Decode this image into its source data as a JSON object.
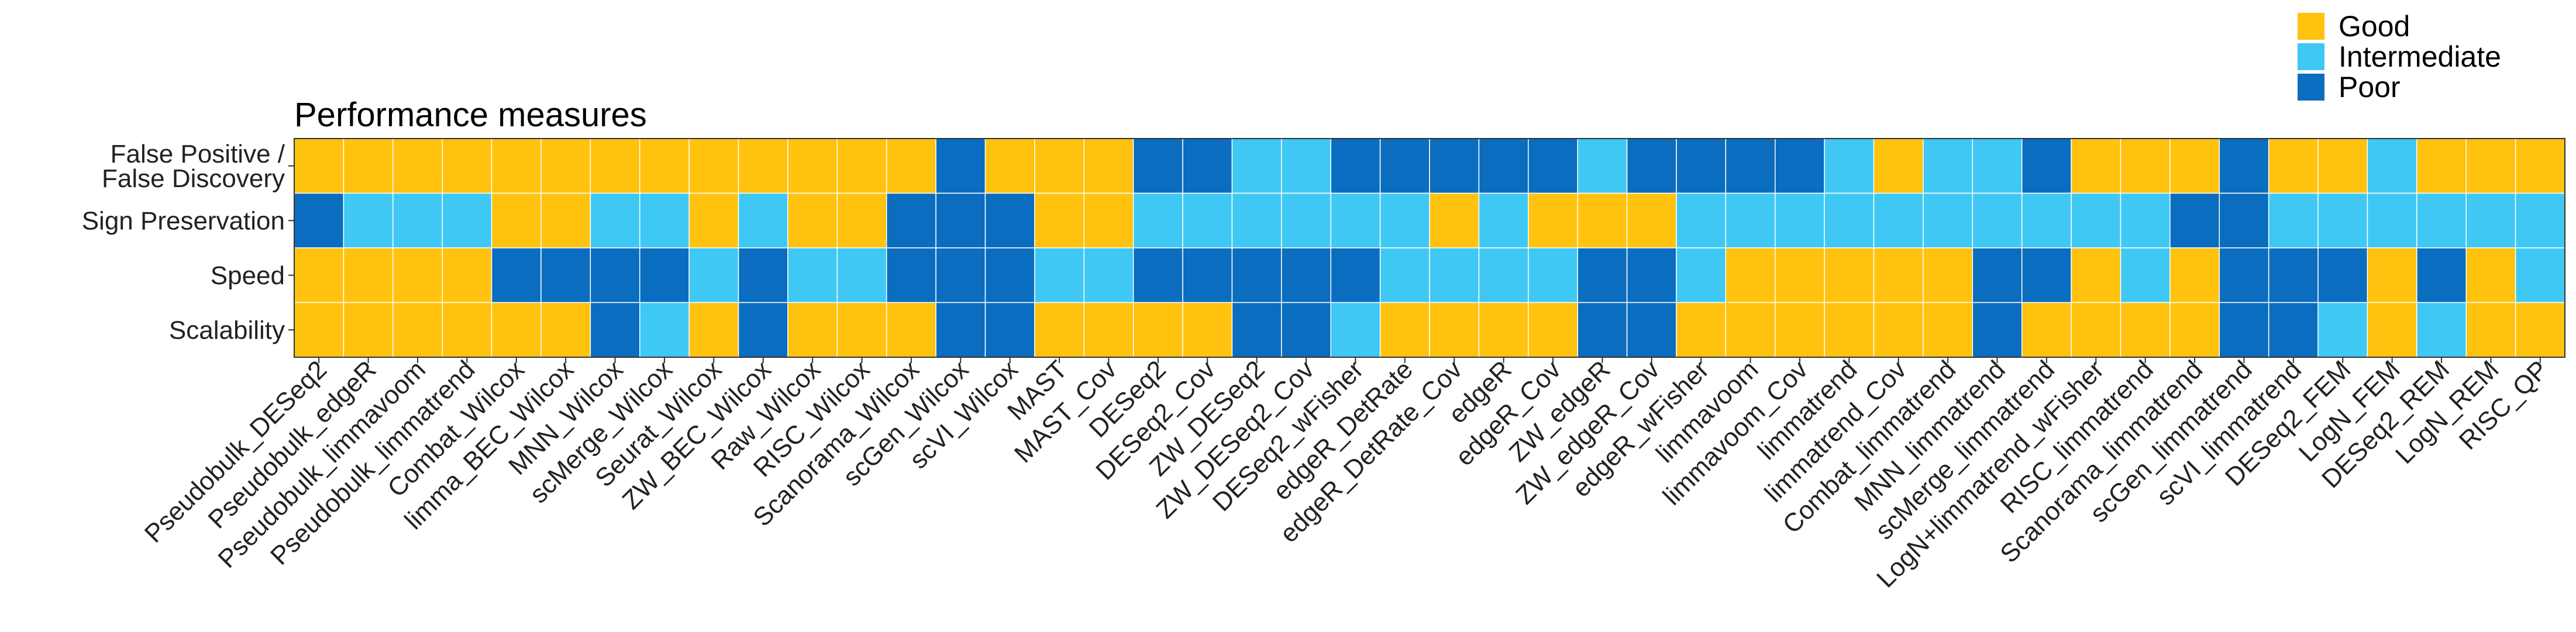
{
  "chart_data": {
    "type": "heatmap",
    "title": "Performance measures",
    "rows": [
      [
        "False Positive /",
        "False Discovery"
      ],
      [
        "Sign Preservation"
      ],
      [
        "Speed"
      ],
      [
        "Scalability"
      ]
    ],
    "columns": [
      "Pseudobulk_DESeq2",
      "Pseudobulk_edgeR",
      "Pseudobulk_limmavoom",
      "Pseudobulk_limmatrend",
      "Combat_Wilcox",
      "limma_BEC_Wilcox",
      "MNN_Wilcox",
      "scMerge_Wilcox",
      "Seurat_Wilcox",
      "ZW_BEC_Wilcox",
      "Raw_Wilcox",
      "RISC_Wilcox",
      "Scanorama_Wilcox",
      "scGen_Wilcox",
      "scVI_Wilcox",
      "MAST",
      "MAST_Cov",
      "DESeq2",
      "DESeq2_Cov",
      "ZW_DESeq2",
      "ZW_DESeq2_Cov",
      "DESeq2_wFisher",
      "edgeR_DetRate",
      "edgeR_DetRate_Cov",
      "edgeR",
      "edgeR_Cov",
      "ZW_edgeR",
      "ZW_edgeR_Cov",
      "edgeR_wFisher",
      "limmavoom",
      "limmavoom_Cov",
      "limmatrend",
      "limmatrend_Cov",
      "Combat_limmatrend",
      "MNN_limmatrend",
      "scMerge_limmatrend",
      "LogN+limmatrend_wFisher",
      "RISC_limmatrend",
      "Scanorama_limmatrend",
      "scGen_limmatrend",
      "scVI_limmatrend",
      "DESeq2_FEM",
      "LogN_FEM",
      "DESeq2_REM",
      "LogN_REM",
      "RISC_QP"
    ],
    "categories": [
      "Good",
      "Intermediate",
      "Poor"
    ],
    "colors": {
      "Good": "#FFC20E",
      "Intermediate": "#3FC8F4",
      "Poor": "#0A6DBF"
    },
    "values": [
      [
        "G",
        "G",
        "G",
        "G",
        "G",
        "G",
        "G",
        "G",
        "G",
        "G",
        "G",
        "G",
        "G",
        "P",
        "G",
        "G",
        "G",
        "P",
        "P",
        "I",
        "I",
        "P",
        "P",
        "P",
        "P",
        "P",
        "I",
        "P",
        "P",
        "P",
        "P",
        "I",
        "G",
        "I",
        "I",
        "P",
        "G",
        "G",
        "G",
        "P",
        "G",
        "G",
        "I",
        "G",
        "G",
        "G"
      ],
      [
        "P",
        "I",
        "I",
        "I",
        "G",
        "G",
        "I",
        "I",
        "G",
        "I",
        "G",
        "G",
        "P",
        "P",
        "P",
        "G",
        "G",
        "I",
        "I",
        "I",
        "I",
        "I",
        "I",
        "G",
        "I",
        "G",
        "G",
        "G",
        "I",
        "I",
        "I",
        "I",
        "I",
        "I",
        "I",
        "I",
        "I",
        "I",
        "P",
        "P",
        "I",
        "I",
        "I",
        "I",
        "I",
        "I"
      ],
      [
        "G",
        "G",
        "G",
        "G",
        "P",
        "P",
        "P",
        "P",
        "I",
        "P",
        "I",
        "I",
        "P",
        "P",
        "P",
        "I",
        "I",
        "P",
        "P",
        "P",
        "P",
        "P",
        "I",
        "I",
        "I",
        "I",
        "P",
        "P",
        "I",
        "G",
        "G",
        "G",
        "G",
        "G",
        "P",
        "P",
        "G",
        "I",
        "G",
        "P",
        "P",
        "P",
        "G",
        "P",
        "G",
        "I"
      ],
      [
        "G",
        "G",
        "G",
        "G",
        "G",
        "G",
        "P",
        "I",
        "G",
        "P",
        "G",
        "G",
        "G",
        "P",
        "P",
        "G",
        "G",
        "G",
        "G",
        "P",
        "P",
        "I",
        "G",
        "G",
        "G",
        "G",
        "P",
        "P",
        "G",
        "G",
        "G",
        "G",
        "G",
        "G",
        "P",
        "G",
        "G",
        "G",
        "G",
        "P",
        "P",
        "I",
        "G",
        "I",
        "G",
        "G"
      ]
    ],
    "legend": "top-right"
  }
}
